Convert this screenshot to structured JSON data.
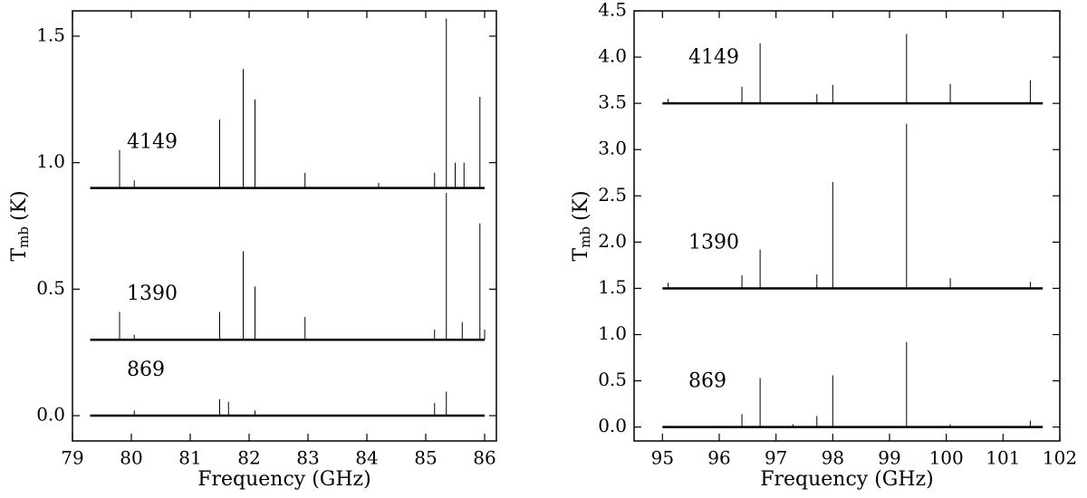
{
  "chart_data": [
    {
      "type": "spectrum",
      "xlabel": "Frequency (GHz)",
      "ylabel": "T",
      "ylabel_sub": "mb",
      "ylabel_unit": "(K)",
      "xlim": [
        79,
        86.2
      ],
      "xticks": [
        79,
        80,
        81,
        82,
        83,
        84,
        85,
        86
      ],
      "ylim": [
        -0.1,
        1.6
      ],
      "yticks": [
        {
          "value": 0,
          "label": "0.0"
        },
        0.5,
        {
          "value": 1,
          "label": "1.0"
        },
        1.5
      ],
      "series": [
        {
          "name": "4149",
          "color": "#000000",
          "baseline": 0.9,
          "span": [
            79.3,
            86.0
          ],
          "x": [
            79.8,
            80.05,
            81.5,
            81.9,
            82.1,
            82.95,
            84.2,
            85.15,
            85.35,
            85.5,
            85.65,
            85.92
          ],
          "values": [
            1.05,
            0.93,
            1.17,
            1.37,
            1.25,
            0.96,
            0.92,
            0.96,
            1.57,
            1.0,
            1.0,
            1.26
          ]
        },
        {
          "name": "1390",
          "color": "#000000",
          "baseline": 0.3,
          "span": [
            79.3,
            86.0
          ],
          "x": [
            79.8,
            80.05,
            81.5,
            81.9,
            82.1,
            82.95,
            85.15,
            85.35,
            85.62,
            85.92,
            86.0
          ],
          "values": [
            0.41,
            0.32,
            0.41,
            0.65,
            0.51,
            0.39,
            0.34,
            0.88,
            0.37,
            0.76,
            0.34
          ]
        },
        {
          "name": "869",
          "color": "#000000",
          "baseline": 0,
          "span": [
            79.3,
            86.0
          ],
          "x": [
            80.05,
            81.5,
            81.65,
            82.1,
            85.15,
            85.35
          ],
          "values": [
            0.02,
            0.065,
            0.055,
            0.02,
            0.05,
            0.095
          ]
        }
      ]
    },
    {
      "type": "spectrum",
      "xlabel": "Frequency (GHz)",
      "ylabel": "T",
      "ylabel_sub": "mb",
      "ylabel_unit": "(K)",
      "xlim": [
        94.5,
        102
      ],
      "xticks": [
        95,
        96,
        97,
        98,
        99,
        100,
        101,
        102
      ],
      "ylim": [
        -0.15,
        4.5
      ],
      "yticks": [
        {
          "value": 0,
          "label": "0.0"
        },
        0.5,
        {
          "value": 1,
          "label": "1.0"
        },
        1.5,
        {
          "value": 2,
          "label": "2.0"
        },
        2.5,
        {
          "value": 3,
          "label": "3.0"
        },
        3.5,
        {
          "value": 4,
          "label": "4.0"
        },
        4.5
      ],
      "series": [
        {
          "name": "4149",
          "color": "#000000",
          "baseline": 3.5,
          "span": [
            95,
            101.7
          ],
          "x": [
            95.1,
            96.4,
            96.72,
            97.72,
            98.0,
            99.3,
            100.07,
            101.48
          ],
          "values": [
            3.55,
            3.68,
            4.15,
            3.6,
            3.7,
            4.25,
            3.71,
            3.75
          ]
        },
        {
          "name": "1390",
          "color": "#000000",
          "baseline": 1.5,
          "span": [
            95,
            101.7
          ],
          "x": [
            95.1,
            96.4,
            96.72,
            97.72,
            98.0,
            99.3,
            100.07,
            101.48
          ],
          "values": [
            1.56,
            1.64,
            1.92,
            1.65,
            2.65,
            3.28,
            1.61,
            1.57
          ]
        },
        {
          "name": "869",
          "color": "#000000",
          "baseline": 0,
          "span": [
            95,
            101.7
          ],
          "x": [
            96.4,
            96.72,
            97.3,
            97.72,
            98.0,
            99.3,
            100.07,
            101.48
          ],
          "values": [
            0.14,
            0.53,
            0.03,
            0.12,
            0.56,
            0.92,
            0.03,
            0.07
          ]
        }
      ]
    }
  ]
}
